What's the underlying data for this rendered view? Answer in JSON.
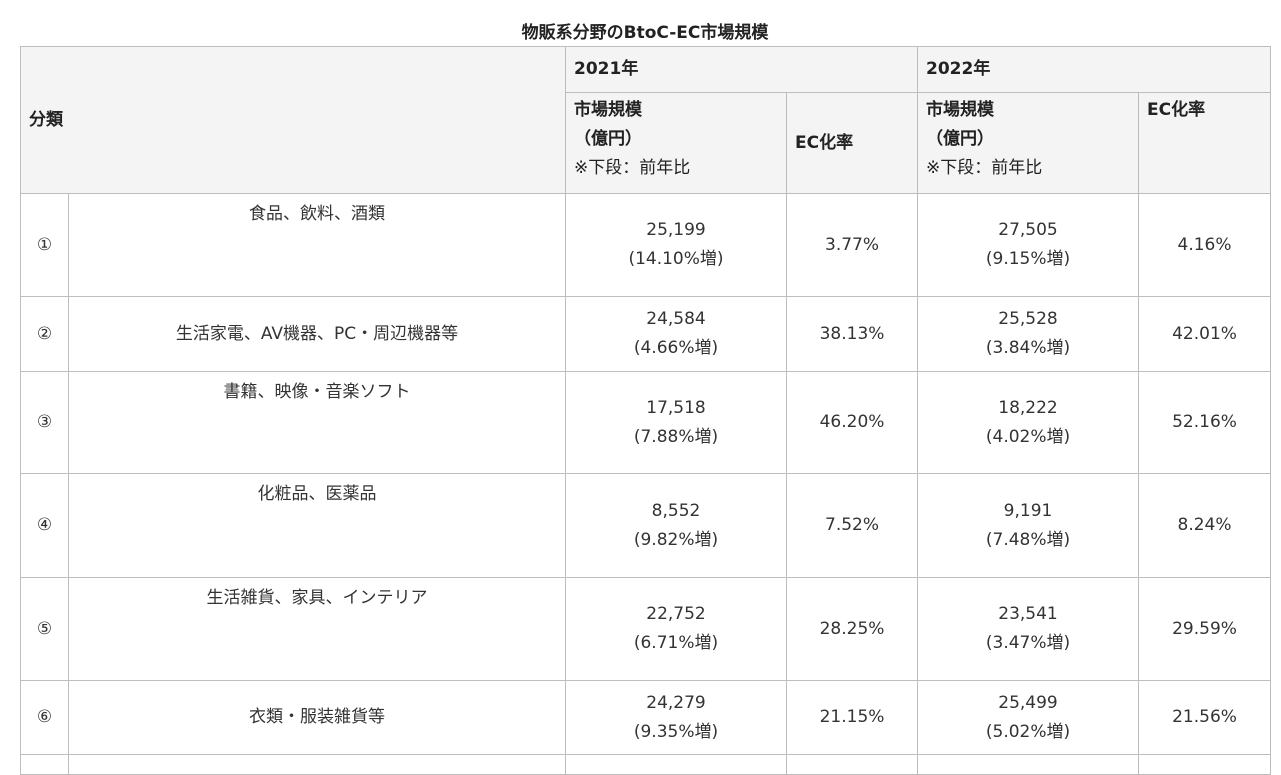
{
  "title": "物販系分野のBtoC-EC市場規模",
  "header": {
    "category": "分類",
    "year1": "2021年",
    "year2": "2022年",
    "market_size_line1": "市場規模",
    "market_size_line2": "（億円）",
    "market_size_note": "※下段：前年比",
    "ec_rate": "EC化率"
  },
  "rows": [
    {
      "no": "①",
      "name": "食品、飲料、酒類",
      "size2021": "25,199",
      "growth2021": "(14.10%増)",
      "ec2021": "3.77%",
      "size2022": "27,505",
      "growth2022": "(9.15%増)",
      "ec2022": "4.16%"
    },
    {
      "no": "②",
      "name": "生活家電、AV機器、PC・周辺機器等",
      "size2021": "24,584",
      "growth2021": "(4.66%増)",
      "ec2021": "38.13%",
      "size2022": "25,528",
      "growth2022": "(3.84%増)",
      "ec2022": "42.01%"
    },
    {
      "no": "③",
      "name": "書籍、映像・音楽ソフト",
      "size2021": "17,518",
      "growth2021": "(7.88%増)",
      "ec2021": "46.20%",
      "size2022": "18,222",
      "growth2022": "(4.02%増)",
      "ec2022": "52.16%"
    },
    {
      "no": "④",
      "name": "化粧品、医薬品",
      "size2021": "8,552",
      "growth2021": "(9.82%増)",
      "ec2021": "7.52%",
      "size2022": "9,191",
      "growth2022": "(7.48%増)",
      "ec2022": "8.24%"
    },
    {
      "no": "⑤",
      "name": "生活雑貨、家具、インテリア",
      "size2021": "22,752",
      "growth2021": "(6.71%増)",
      "ec2021": "28.25%",
      "size2022": "23,541",
      "growth2022": "(3.47%増)",
      "ec2022": "29.59%"
    },
    {
      "no": "⑥",
      "name": "衣類・服装雑貨等",
      "size2021": "24,279",
      "growth2021": "(9.35%増)",
      "ec2021": "21.15%",
      "size2022": "25,499",
      "growth2022": "(5.02%増)",
      "ec2022": "21.56%"
    }
  ]
}
